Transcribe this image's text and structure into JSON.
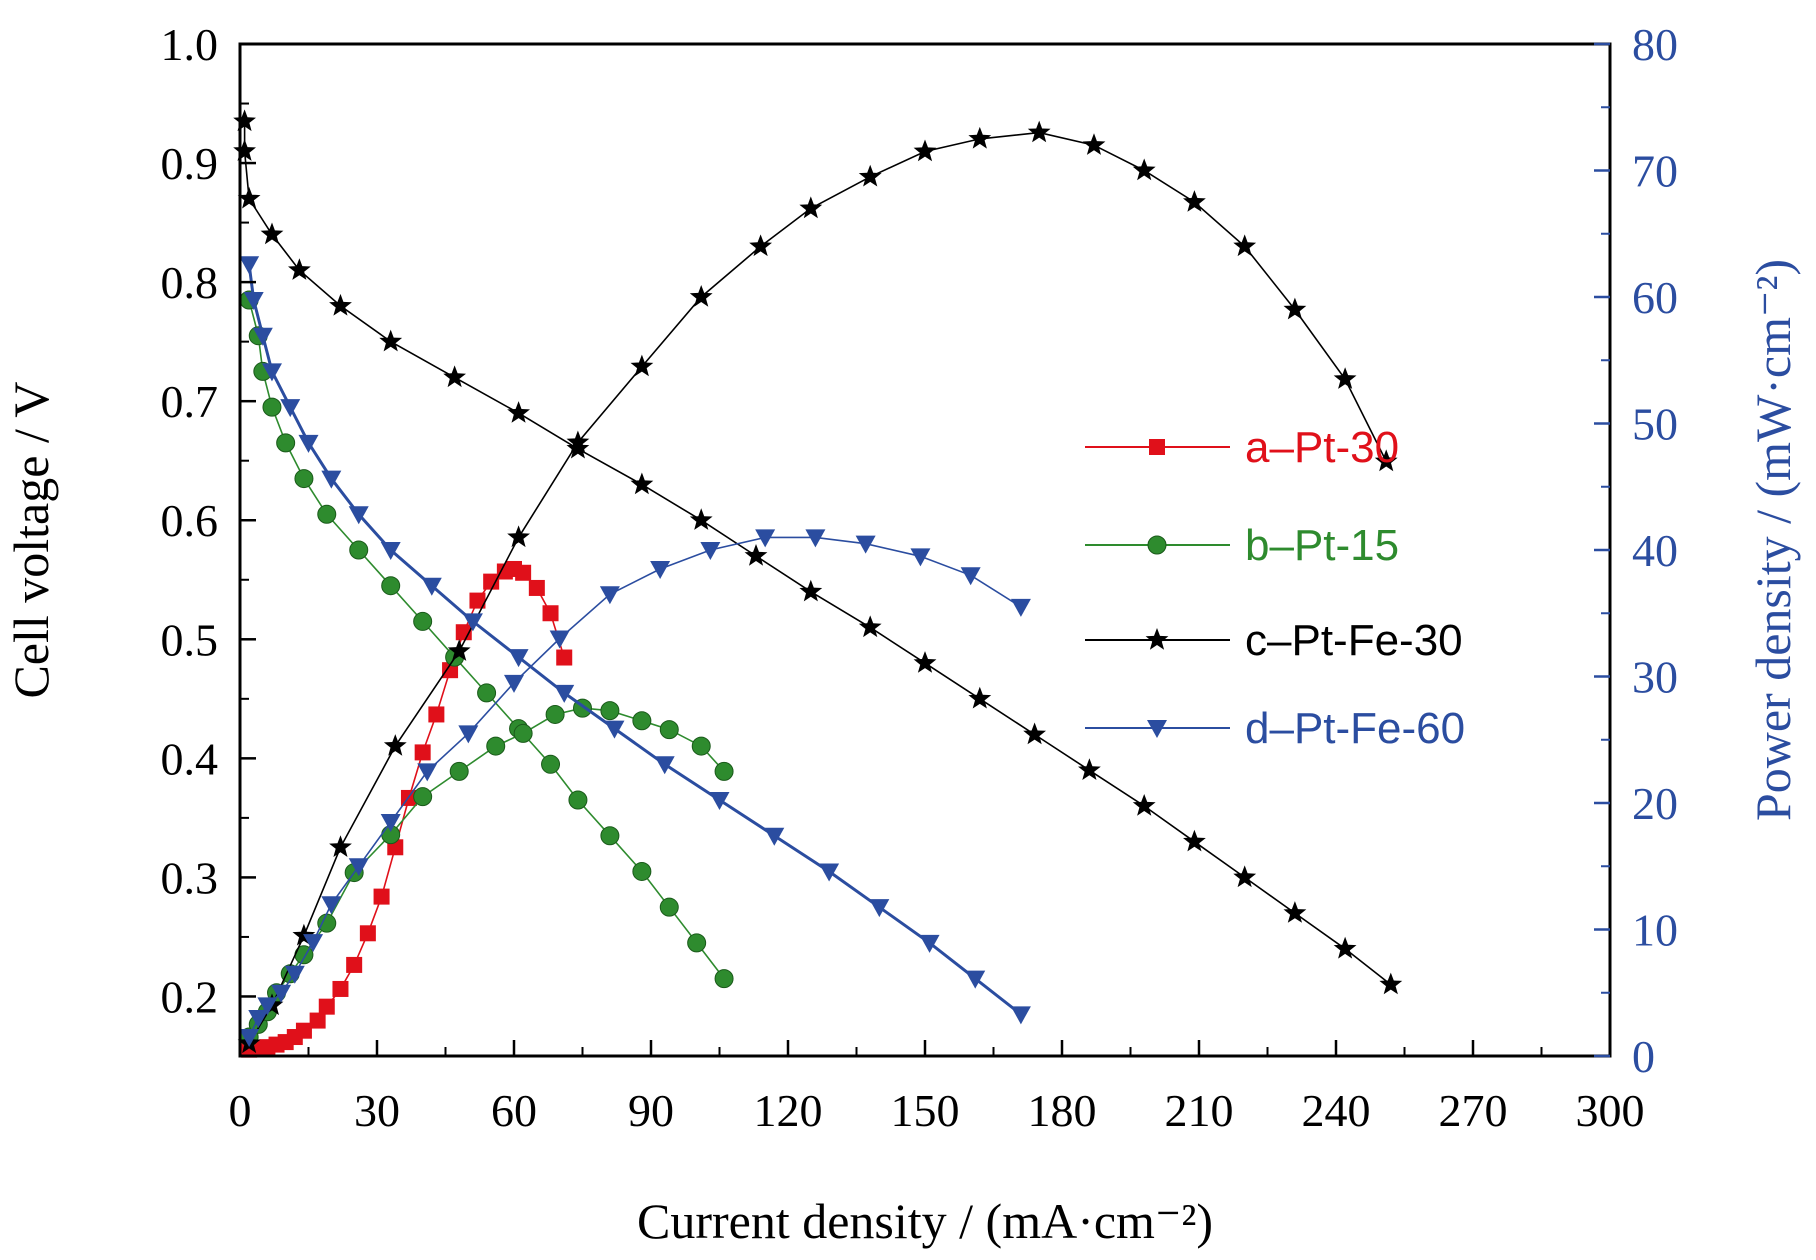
{
  "chart_data": {
    "type": "line",
    "xlabel": "Current density / (mA·cm⁻²)",
    "ylabel_left": "Cell voltage / V",
    "ylabel_right": "Power density / (mW·cm⁻²)",
    "xlim": [
      0,
      300
    ],
    "ylim_left": [
      0.15,
      1.0
    ],
    "ylim_right": [
      0,
      80
    ],
    "x_ticks": [
      "0",
      "30",
      "60",
      "90",
      "120",
      "150",
      "180",
      "210",
      "240",
      "270",
      "300"
    ],
    "y_left_ticks": [
      "0.2",
      "0.3",
      "0.4",
      "0.5",
      "0.6",
      "0.7",
      "0.8",
      "0.9",
      "1.0"
    ],
    "y_right_ticks": [
      "0",
      "10",
      "20",
      "30",
      "40",
      "50",
      "60",
      "70",
      "80"
    ],
    "grid": false,
    "legend_position": "center-right",
    "series": [
      {
        "name": "a–Pt-30",
        "color": "#e0101a",
        "marker": "square",
        "polarization": [],
        "power": [
          [
            2,
            0.5
          ],
          [
            4,
            0.6
          ],
          [
            6,
            0.7
          ],
          [
            8,
            0.9
          ],
          [
            10,
            1.1
          ],
          [
            12,
            1.5
          ],
          [
            14,
            2.0
          ],
          [
            17,
            2.8
          ],
          [
            19,
            3.9
          ],
          [
            22,
            5.3
          ],
          [
            25,
            7.2
          ],
          [
            28,
            9.7
          ],
          [
            31,
            12.6
          ],
          [
            34,
            16.5
          ],
          [
            37,
            20.4
          ],
          [
            40,
            24
          ],
          [
            43,
            27
          ],
          [
            46,
            30.5
          ],
          [
            49,
            33.5
          ],
          [
            52,
            36
          ],
          [
            55,
            37.5
          ],
          [
            58,
            38.3
          ],
          [
            60,
            38.5
          ],
          [
            62,
            38.2
          ],
          [
            65,
            37
          ],
          [
            68,
            35
          ],
          [
            71,
            31.5
          ]
        ]
      },
      {
        "name": "b–Pt-15",
        "color": "#2e8b2e",
        "marker": "circle",
        "polarization": [
          [
            2,
            0.785
          ],
          [
            4,
            0.755
          ],
          [
            5,
            0.725
          ],
          [
            7,
            0.695
          ],
          [
            10,
            0.665
          ],
          [
            14,
            0.635
          ],
          [
            19,
            0.605
          ],
          [
            26,
            0.575
          ],
          [
            33,
            0.545
          ],
          [
            40,
            0.515
          ],
          [
            47,
            0.485
          ],
          [
            54,
            0.455
          ],
          [
            61,
            0.425
          ],
          [
            68,
            0.395
          ],
          [
            74,
            0.365
          ],
          [
            81,
            0.335
          ],
          [
            88,
            0.305
          ],
          [
            94,
            0.275
          ],
          [
            100,
            0.245
          ],
          [
            106,
            0.215
          ]
        ],
        "power": [
          [
            2,
            1.5
          ],
          [
            4,
            2.5
          ],
          [
            6,
            3.5
          ],
          [
            8,
            5
          ],
          [
            11,
            6.5
          ],
          [
            14,
            8
          ],
          [
            19,
            10.5
          ],
          [
            25,
            14.5
          ],
          [
            33,
            17.5
          ],
          [
            40,
            20.5
          ],
          [
            48,
            22.5
          ],
          [
            56,
            24.5
          ],
          [
            62,
            25.5
          ],
          [
            69,
            27
          ],
          [
            75,
            27.5
          ],
          [
            81,
            27.3
          ],
          [
            88,
            26.5
          ],
          [
            94,
            25.8
          ],
          [
            101,
            24.5
          ],
          [
            106,
            22.5
          ]
        ]
      },
      {
        "name": "c–Pt-Fe-30",
        "color": "#000000",
        "marker": "star",
        "polarization": [
          [
            1,
            0.935
          ],
          [
            1,
            0.91
          ],
          [
            2,
            0.87
          ],
          [
            7,
            0.84
          ],
          [
            13,
            0.81
          ],
          [
            22,
            0.78
          ],
          [
            33,
            0.75
          ],
          [
            47,
            0.72
          ],
          [
            61,
            0.69
          ],
          [
            74,
            0.66
          ],
          [
            88,
            0.63
          ],
          [
            101,
            0.6
          ],
          [
            113,
            0.57
          ],
          [
            125,
            0.54
          ],
          [
            138,
            0.51
          ],
          [
            150,
            0.48
          ],
          [
            162,
            0.45
          ],
          [
            174,
            0.42
          ],
          [
            186,
            0.39
          ],
          [
            198,
            0.36
          ],
          [
            209,
            0.33
          ],
          [
            220,
            0.3
          ],
          [
            231,
            0.27
          ],
          [
            242,
            0.24
          ],
          [
            252,
            0.21
          ]
        ],
        "power": [
          [
            2,
            1
          ],
          [
            7,
            4
          ],
          [
            14,
            9.5
          ],
          [
            22,
            16.5
          ],
          [
            34,
            24.5
          ],
          [
            48,
            32
          ],
          [
            61,
            41
          ],
          [
            74,
            48.5
          ],
          [
            88,
            54.5
          ],
          [
            101,
            60
          ],
          [
            114,
            64
          ],
          [
            125,
            67
          ],
          [
            138,
            69.5
          ],
          [
            150,
            71.5
          ],
          [
            162,
            72.5
          ],
          [
            175,
            73
          ],
          [
            187,
            72
          ],
          [
            198,
            70
          ],
          [
            209,
            67.5
          ],
          [
            220,
            64
          ],
          [
            231,
            59
          ],
          [
            242,
            53.5
          ],
          [
            251,
            47
          ]
        ]
      },
      {
        "name": "d–Pt-Fe-60",
        "color": "#2b4da0",
        "marker": "triangle-down",
        "polarization": [
          [
            2,
            0.815
          ],
          [
            3,
            0.785
          ],
          [
            5,
            0.755
          ],
          [
            7,
            0.725
          ],
          [
            11,
            0.695
          ],
          [
            15,
            0.665
          ],
          [
            20,
            0.635
          ],
          [
            26,
            0.605
          ],
          [
            33,
            0.575
          ],
          [
            42,
            0.545
          ],
          [
            51,
            0.515
          ],
          [
            61,
            0.485
          ],
          [
            71,
            0.455
          ],
          [
            82,
            0.425
          ],
          [
            93,
            0.395
          ],
          [
            105,
            0.365
          ],
          [
            117,
            0.335
          ],
          [
            129,
            0.305
          ],
          [
            140,
            0.275
          ],
          [
            151,
            0.245
          ],
          [
            161,
            0.215
          ],
          [
            171,
            0.185
          ]
        ],
        "power": [
          [
            2,
            1.5
          ],
          [
            4,
            3
          ],
          [
            6,
            4
          ],
          [
            9,
            5
          ],
          [
            12,
            6.5
          ],
          [
            16,
            9
          ],
          [
            20,
            12
          ],
          [
            26,
            15
          ],
          [
            33,
            18.5
          ],
          [
            41,
            22.5
          ],
          [
            50,
            25.5
          ],
          [
            60,
            29.5
          ],
          [
            70,
            33
          ],
          [
            81,
            36.5
          ],
          [
            92,
            38.5
          ],
          [
            103,
            40
          ],
          [
            115,
            41
          ],
          [
            126,
            41
          ],
          [
            137,
            40.5
          ],
          [
            149,
            39.5
          ],
          [
            160,
            38
          ],
          [
            171,
            35.5
          ]
        ]
      }
    ]
  }
}
